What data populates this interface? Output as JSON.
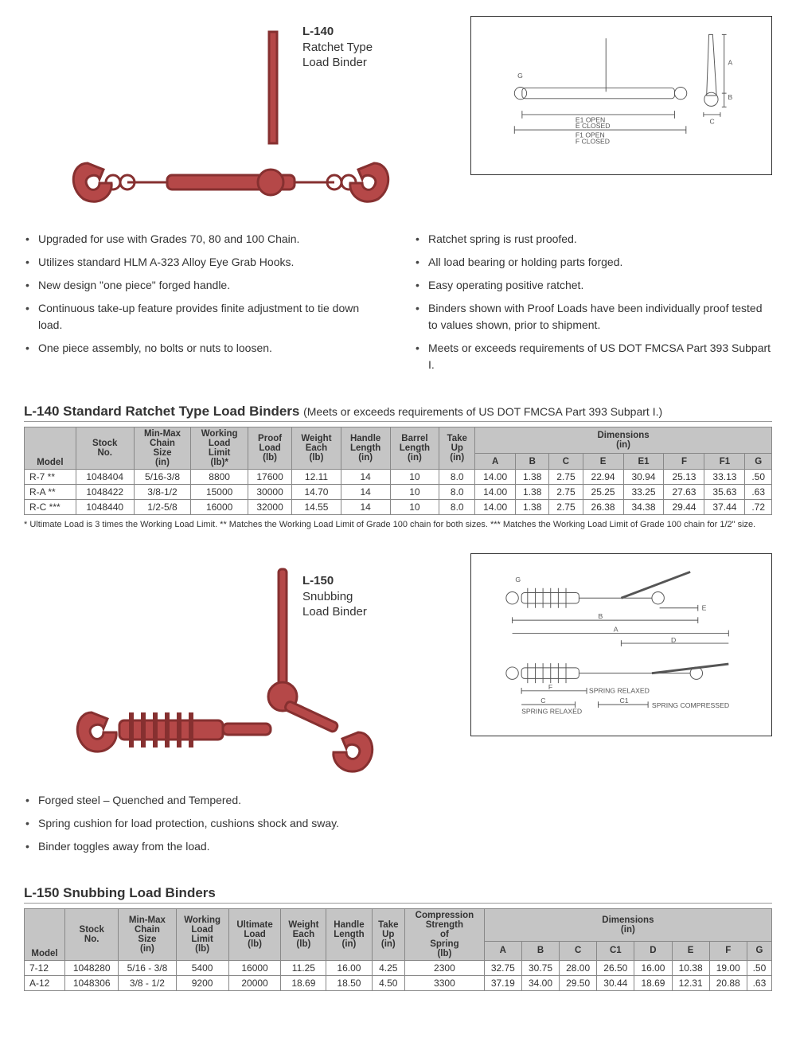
{
  "colors": {
    "text": "#333333",
    "binder_fill": "#b54848",
    "binder_stroke": "#863030",
    "table_header_bg": "#c5c5c5",
    "table_border": "#888888",
    "diagram_border": "#333333"
  },
  "product1": {
    "code": "L-140",
    "name_line1": "Ratchet Type",
    "name_line2": "Load Binder",
    "diagram_labels": {
      "g": "G",
      "e1_open": "E1 OPEN",
      "e_closed": "E CLOSED",
      "f1_open": "F1 OPEN",
      "f_closed": "F CLOSED",
      "a": "A",
      "b": "B",
      "c": "C"
    },
    "features_left": [
      "Upgraded for use with Grades 70, 80 and 100 Chain.",
      "Utilizes standard HLM A-323 Alloy Eye Grab Hooks.",
      "New design \"one piece\" forged handle.",
      "Continuous take-up feature provides finite adjustment to tie down load.",
      "One piece assembly, no bolts or nuts to loosen."
    ],
    "features_right": [
      "Ratchet spring is rust proofed.",
      "All load bearing or holding parts forged.",
      "Easy operating positive ratchet.",
      "Binders shown with Proof Loads have been individually proof tested to values shown, prior to shipment.",
      "Meets or exceeds requirements of US DOT FMCSA Part 393 Subpart I."
    ]
  },
  "table1": {
    "title_main": "L-140 Standard Ratchet Type Load Binders",
    "title_sub": "(Meets or exceeds requirements of US DOT FMCSA Part 393 Subpart I.)",
    "dim_group": "Dimensions\n(in)",
    "columns_main": [
      "Model",
      "Stock No.",
      "Min-Max Chain Size (in)",
      "Working Load Limit (lb)*",
      "Proof Load (lb)",
      "Weight Each (lb)",
      "Handle Length (in)",
      "Barrel Length (in)",
      "Take Up (in)"
    ],
    "columns_dim": [
      "A",
      "B",
      "C",
      "E",
      "E1",
      "F",
      "F1",
      "G"
    ],
    "rows": [
      [
        "R-7 **",
        "1048404",
        "5/16-3/8",
        "8800",
        "17600",
        "12.11",
        "14",
        "10",
        "8.0",
        "14.00",
        "1.38",
        "2.75",
        "22.94",
        "30.94",
        "25.13",
        "33.13",
        ".50"
      ],
      [
        "R-A **",
        "1048422",
        "3/8-1/2",
        "15000",
        "30000",
        "14.70",
        "14",
        "10",
        "8.0",
        "14.00",
        "1.38",
        "2.75",
        "25.25",
        "33.25",
        "27.63",
        "35.63",
        ".63"
      ],
      [
        "R-C ***",
        "1048440",
        "1/2-5/8",
        "16000",
        "32000",
        "14.55",
        "14",
        "10",
        "8.0",
        "14.00",
        "1.38",
        "2.75",
        "26.38",
        "34.38",
        "29.44",
        "37.44",
        ".72"
      ]
    ],
    "footnote": "* Ultimate Load is 3 times the Working Load Limit.   ** Matches the Working Load Limit of Grade 100 chain for both sizes.   *** Matches the Working Load Limit of Grade 100 chain for 1/2\" size."
  },
  "product2": {
    "code": "L-150",
    "name_line1": "Snubbing",
    "name_line2": "Load Binder",
    "diagram_labels": {
      "g": "G",
      "e": "E",
      "b": "B",
      "a": "A",
      "d": "D",
      "f": "F",
      "spring_relaxed": "SPRING RELAXED",
      "c": "C",
      "c1": "C1",
      "spring_compressed": "SPRING COMPRESSED"
    },
    "features": [
      "Forged steel – Quenched and Tempered.",
      "Spring cushion for load protection, cushions shock and sway.",
      "Binder toggles away from the load."
    ]
  },
  "table2": {
    "title_main": "L-150 Snubbing Load Binders",
    "dim_group": "Dimensions\n(in)",
    "columns_main": [
      "Model",
      "Stock No.",
      "Min-Max Chain Size (in)",
      "Working Load Limit (lb)",
      "Ultimate Load (lb)",
      "Weight Each (lb)",
      "Handle Length (in)",
      "Take Up (in)",
      "Compression Strength of Spring (lb)"
    ],
    "columns_dim": [
      "A",
      "B",
      "C",
      "C1",
      "D",
      "E",
      "F",
      "G"
    ],
    "rows": [
      [
        "7-12",
        "1048280",
        "5/16 - 3/8",
        "5400",
        "16000",
        "11.25",
        "16.00",
        "4.25",
        "2300",
        "32.75",
        "30.75",
        "28.00",
        "26.50",
        "16.00",
        "10.38",
        "19.00",
        ".50"
      ],
      [
        "A-12",
        "1048306",
        "3/8 - 1/2",
        "9200",
        "20000",
        "18.69",
        "18.50",
        "4.50",
        "3300",
        "37.19",
        "34.00",
        "29.50",
        "30.44",
        "18.69",
        "12.31",
        "20.88",
        ".63"
      ]
    ]
  }
}
